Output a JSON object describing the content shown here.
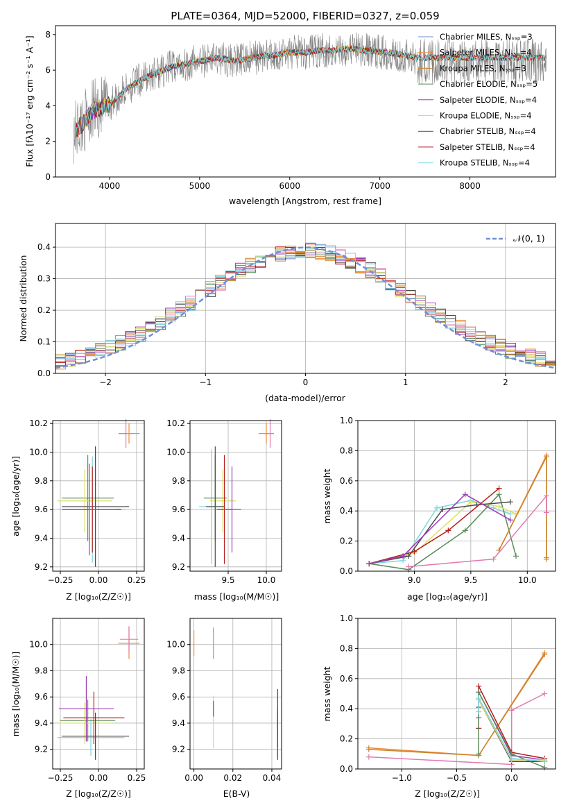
{
  "figure_title": "PLATE=0364, MJD=52000, FIBERID=0327, z=0.059",
  "colors": {
    "spec": "#808080",
    "models": [
      "#6f8fd6",
      "#ef8a3a",
      "#c8842a",
      "#5b8a5b",
      "#9b3fb6",
      "#dede63",
      "#4a4a4a",
      "#b51c1c",
      "#7dd6dd"
    ],
    "pink": "#e07bb2"
  },
  "chart_data": [
    {
      "type": "line",
      "title": "PLATE=0364, MJD=52000, FIBERID=0327, z=0.059",
      "xlabel": "wavelength [Angstrom, rest frame]",
      "ylabel": "Flux [fλ10⁻¹⁷ erg cm⁻² s⁻¹ A⁻¹]",
      "xlim": [
        3400,
        8950
      ],
      "ylim": [
        0,
        8.5
      ],
      "xticks": [
        "4000",
        "5000",
        "6000",
        "7000",
        "8000"
      ],
      "xtick_values": [
        4000,
        5000,
        6000,
        7000,
        8000
      ],
      "yticks": [
        "0",
        "2",
        "4",
        "6",
        "8"
      ],
      "ytick_values": [
        0,
        2,
        4,
        6,
        8
      ],
      "legend_position": "top-right",
      "spectrum_x": [
        3600,
        3700,
        3800,
        3900,
        4000,
        4100,
        4200,
        4300,
        4400,
        4500,
        4600,
        4700,
        4800,
        4900,
        5000,
        5100,
        5200,
        5300,
        5400,
        5500,
        5600,
        5700,
        5800,
        5900,
        6000,
        6100,
        6200,
        6300,
        6400,
        6500,
        6600,
        6700,
        6800,
        6900,
        7000,
        7100,
        7200,
        7300,
        7400
      ],
      "spectrum_y": [
        2.5,
        3.0,
        3.7,
        3.9,
        4.1,
        4.5,
        5.0,
        5.3,
        5.6,
        5.8,
        6.0,
        6.2,
        6.3,
        6.4,
        6.5,
        6.6,
        6.7,
        6.6,
        6.5,
        6.6,
        6.7,
        6.8,
        6.8,
        6.9,
        7.0,
        7.0,
        7.0,
        7.1,
        7.1,
        7.1,
        7.2,
        7.2,
        7.1,
        7.1,
        7.0,
        7.0,
        6.9,
        6.8,
        6.7
      ],
      "series": [
        {
          "name": "Chabrier MILES, Nₛₛₚ=3"
        },
        {
          "name": "Salpeter MILES, Nₛₛₚ=4"
        },
        {
          "name": "Kroupa MILES, Nₛₛₚ=3"
        },
        {
          "name": "Chabrier ELODIE, Nₛₛₚ=5"
        },
        {
          "name": "Salpeter ELODIE, Nₛₛₚ=4"
        },
        {
          "name": "Kroupa ELODIE, Nₛₛₚ=4"
        },
        {
          "name": "Chabrier STELIB, Nₛₛₚ=4"
        },
        {
          "name": "Salpeter STELIB, Nₛₛₚ=4"
        },
        {
          "name": "Kroupa STELIB, Nₛₛₚ=4"
        }
      ]
    },
    {
      "type": "line",
      "xlabel": "(data-model)/error",
      "ylabel": "Normed distribution",
      "xlim": [
        -2.5,
        2.5
      ],
      "ylim": [
        0,
        0.475
      ],
      "xticks": [
        "−2",
        "−1",
        "0",
        "1",
        "2"
      ],
      "xtick_values": [
        -2,
        -1,
        0,
        1,
        2
      ],
      "yticks": [
        "0.0",
        "0.1",
        "0.2",
        "0.3",
        "0.4"
      ],
      "ytick_values": [
        0,
        0.1,
        0.2,
        0.3,
        0.4
      ],
      "legend_position": "top-right",
      "reference_curve": {
        "name": "𝒩(0, 1)",
        "mean": 0,
        "sigma": 1
      },
      "bin_width": 0.1
    },
    {
      "type": "scatter",
      "xlabel": "Z [log₁₀(Z/Z☉)]",
      "ylabel": "age  [log₁₀(age/yr)]",
      "xlim": [
        -0.3,
        0.3
      ],
      "ylim": [
        9.17,
        10.22
      ],
      "xticks": [
        "−0.25",
        "0.00",
        "0.25"
      ],
      "xtick_values": [
        -0.25,
        0,
        0.25
      ],
      "yticks": [
        "9.2",
        "9.4",
        "9.6",
        "9.8",
        "10.0",
        "10.2"
      ],
      "ytick_values": [
        9.2,
        9.4,
        9.6,
        9.8,
        10.0,
        10.2
      ]
    },
    {
      "type": "scatter",
      "xlabel": "mass [log₁₀(M/M☉)]",
      "xlim": [
        9.0,
        10.2
      ],
      "ylim": [
        9.17,
        10.22
      ],
      "xticks": [
        "9.5",
        "10.0"
      ],
      "xtick_values": [
        9.5,
        10.0
      ],
      "yticks": [
        "9.2",
        "9.4",
        "9.6",
        "9.8",
        "10.0",
        "10.2"
      ],
      "ytick_values": [
        9.2,
        9.4,
        9.6,
        9.8,
        10.0,
        10.2
      ]
    },
    {
      "type": "line",
      "xlabel": "age  [log₁₀(age/yr)]",
      "ylabel": "mass weight",
      "xlim": [
        8.5,
        10.25
      ],
      "ylim": [
        0,
        1.0
      ],
      "xticks": [
        "9.0",
        "9.5",
        "10.0"
      ],
      "xtick_values": [
        9.0,
        9.5,
        10.0
      ],
      "yticks": [
        "0.0",
        "0.2",
        "0.4",
        "0.6",
        "0.8",
        "1.0"
      ],
      "ytick_values": [
        0,
        0.2,
        0.4,
        0.6,
        0.8,
        1.0
      ]
    },
    {
      "type": "scatter",
      "xlabel": "Z [log₁₀(Z/Z☉)]",
      "ylabel": "mass [log₁₀(M/M☉)]",
      "xlim": [
        -0.3,
        0.3
      ],
      "ylim": [
        9.05,
        10.2
      ],
      "xticks": [
        "−0.25",
        "0.00",
        "0.25"
      ],
      "xtick_values": [
        -0.25,
        0,
        0.25
      ],
      "yticks": [
        "9.2",
        "9.4",
        "9.6",
        "9.8",
        "10.0"
      ],
      "ytick_values": [
        9.2,
        9.4,
        9.6,
        9.8,
        10.0
      ]
    },
    {
      "type": "scatter",
      "xlabel": "E(B-V)",
      "xlim": [
        -0.002,
        0.045
      ],
      "ylim": [
        9.05,
        10.2
      ],
      "xticks": [
        "0.00",
        "0.02",
        "0.04"
      ],
      "xtick_values": [
        0,
        0.02,
        0.04
      ],
      "yticks": [
        "9.2",
        "9.4",
        "9.6",
        "9.8",
        "10.0"
      ],
      "ytick_values": [
        9.2,
        9.4,
        9.6,
        9.8,
        10.0
      ]
    },
    {
      "type": "line",
      "xlabel": "Z [log₁₀(Z/Z☉)]",
      "ylabel": "mass weight",
      "xlim": [
        -1.4,
        0.4
      ],
      "ylim": [
        0,
        1.0
      ],
      "xticks": [
        "−1.0",
        "−0.5",
        "0.0"
      ],
      "xtick_values": [
        -1.0,
        -0.5,
        0.0
      ],
      "yticks": [
        "0.0",
        "0.2",
        "0.4",
        "0.6",
        "0.8",
        "1.0"
      ],
      "ytick_values": [
        0,
        0.2,
        0.4,
        0.6,
        0.8,
        1.0
      ]
    }
  ],
  "property_points": {
    "age_vs_Z": [
      {
        "c": "#7dd6dd",
        "x": -0.04,
        "xe": 0.22,
        "y": 9.6,
        "ye": 0.37
      },
      {
        "c": "#5b8a5b",
        "x": -0.07,
        "xe": 0.17,
        "y": 9.68,
        "ye": 0.3
      },
      {
        "c": "#dede63",
        "x": -0.09,
        "xe": 0.18,
        "y": 9.66,
        "ye": 0.22
      },
      {
        "c": "#4a4a4a",
        "x": -0.02,
        "xe": 0.22,
        "y": 9.62,
        "ye": 0.42
      },
      {
        "c": "#b51c1c",
        "x": -0.04,
        "xe": 0.19,
        "y": 9.6,
        "ye": 0.3
      },
      {
        "c": "#9b3fb6",
        "x": -0.06,
        "xe": 0.18,
        "y": 9.6,
        "ye": 0.32
      },
      {
        "c": "#ef8a3a",
        "x": 0.2,
        "xe": 0.07,
        "y": 10.13,
        "ye": 0.07
      },
      {
        "c": "#e07bb2",
        "x": 0.18,
        "xe": 0.04,
        "y": 10.13,
        "ye": 0.1
      }
    ],
    "age_vs_mass": [
      {
        "c": "#7dd6dd",
        "x": 9.28,
        "xe": 0.16,
        "y": 9.62,
        "ye": 0.4
      },
      {
        "c": "#5b8a5b",
        "x": 9.33,
        "xe": 0.15,
        "y": 9.68,
        "ye": 0.3
      },
      {
        "c": "#dede63",
        "x": 9.43,
        "xe": 0.17,
        "y": 9.66,
        "ye": 0.22
      },
      {
        "c": "#4a4a4a",
        "x": 9.33,
        "xe": 0.12,
        "y": 9.62,
        "ye": 0.42
      },
      {
        "c": "#b51c1c",
        "x": 9.45,
        "xe": 0.1,
        "y": 9.6,
        "ye": 0.38
      },
      {
        "c": "#9b3fb6",
        "x": 9.55,
        "xe": 0.12,
        "y": 9.6,
        "ye": 0.3
      },
      {
        "c": "#ef8a3a",
        "x": 10.0,
        "xe": 0.1,
        "y": 10.13,
        "ye": 0.07
      },
      {
        "c": "#e07bb2",
        "x": 10.05,
        "xe": 0.05,
        "y": 10.13,
        "ye": 0.1
      }
    ],
    "mass_vs_Z": [
      {
        "c": "#7dd6dd",
        "x": -0.05,
        "xe": 0.22,
        "y": 9.29,
        "ye": 0.14
      },
      {
        "c": "#5b8a5b",
        "x": -0.07,
        "xe": 0.18,
        "y": 9.42,
        "ye": 0.16
      },
      {
        "c": "#dede63",
        "x": -0.09,
        "xe": 0.18,
        "y": 9.4,
        "ye": 0.16
      },
      {
        "c": "#4a4a4a",
        "x": -0.02,
        "xe": 0.22,
        "y": 9.3,
        "ye": 0.18
      },
      {
        "c": "#b51c1c",
        "x": -0.03,
        "xe": 0.2,
        "y": 9.44,
        "ye": 0.2
      },
      {
        "c": "#9b3fb6",
        "x": -0.08,
        "xe": 0.18,
        "y": 9.51,
        "ye": 0.25
      },
      {
        "c": "#ef8a3a",
        "x": 0.2,
        "xe": 0.07,
        "y": 10.01,
        "ye": 0.12
      },
      {
        "c": "#e07bb2",
        "x": 0.2,
        "xe": 0.06,
        "y": 10.04,
        "ye": 0.1
      }
    ],
    "mass_vs_ebv": [
      {
        "c": "#7dd6dd",
        "x": 0.043,
        "y": 9.29,
        "ye": 0.14
      },
      {
        "c": "#5b8a5b",
        "x": 0.043,
        "y": 9.42,
        "ye": 0.1
      },
      {
        "c": "#dede63",
        "x": 0.01,
        "y": 9.41,
        "ye": 0.2
      },
      {
        "c": "#4a4a4a",
        "x": 0.043,
        "y": 9.3,
        "ye": 0.18
      },
      {
        "c": "#b51c1c",
        "x": 0.043,
        "y": 9.44,
        "ye": 0.22
      },
      {
        "c": "#9b3fb6",
        "x": 0.01,
        "y": 9.51,
        "ye": 0.06
      },
      {
        "c": "#ef8a3a",
        "x": 0.0,
        "y": 10.01,
        "ye": 0.1
      },
      {
        "c": "#e07bb2",
        "x": 0.01,
        "y": 10.01,
        "ye": 0.12
      }
    ]
  },
  "weight_lines": {
    "age": [
      {
        "c": "#7dd6dd",
        "pts": [
          [
            8.6,
            0.05
          ],
          [
            8.9,
            0.07
          ],
          [
            9.2,
            0.42
          ],
          [
            9.5,
            0.47
          ],
          [
            9.7,
            0.42
          ],
          [
            9.85,
            0.38
          ]
        ]
      },
      {
        "c": "#5b8a5b",
        "pts": [
          [
            8.6,
            0.05
          ],
          [
            8.95,
            0.01
          ],
          [
            9.45,
            0.27
          ],
          [
            9.75,
            0.51
          ],
          [
            9.9,
            0.1
          ]
        ]
      },
      {
        "c": "#dede63",
        "pts": [
          [
            8.6,
            0.05
          ],
          [
            9.0,
            0.12
          ],
          [
            9.5,
            0.46
          ],
          [
            9.75,
            0.43
          ],
          [
            9.9,
            0.38
          ]
        ]
      },
      {
        "c": "#4a4a4a",
        "pts": [
          [
            8.6,
            0.05
          ],
          [
            8.95,
            0.1
          ],
          [
            9.25,
            0.41
          ],
          [
            9.55,
            0.44
          ],
          [
            9.85,
            0.46
          ]
        ]
      },
      {
        "c": "#b51c1c",
        "pts": [
          [
            8.6,
            0.05
          ],
          [
            9.0,
            0.13
          ],
          [
            9.3,
            0.27
          ],
          [
            9.75,
            0.55
          ]
        ]
      },
      {
        "c": "#9b3fb6",
        "pts": [
          [
            8.6,
            0.05
          ],
          [
            8.9,
            0.1
          ],
          [
            9.45,
            0.51
          ],
          [
            9.85,
            0.34
          ]
        ]
      },
      {
        "c": "#ef8a3a",
        "pts": [
          [
            9.75,
            0.14
          ],
          [
            10.17,
            0.77
          ],
          [
            10.17,
            0.09
          ]
        ]
      },
      {
        "c": "#c8842a",
        "pts": [
          [
            9.75,
            0.14
          ],
          [
            10.17,
            0.76
          ],
          [
            10.17,
            0.08
          ]
        ]
      },
      {
        "c": "#e07bb2",
        "pts": [
          [
            8.95,
            0.03
          ],
          [
            9.7,
            0.08
          ],
          [
            10.17,
            0.5
          ],
          [
            10.17,
            0.39
          ]
        ]
      }
    ],
    "Z": [
      {
        "c": "#ef8a3a",
        "pts": [
          [
            -1.3,
            0.14
          ],
          [
            -0.3,
            0.09
          ],
          [
            0.3,
            0.77
          ]
        ]
      },
      {
        "c": "#c8842a",
        "pts": [
          [
            -1.3,
            0.13
          ],
          [
            -0.3,
            0.09
          ],
          [
            0.3,
            0.76
          ]
        ]
      },
      {
        "c": "#e07bb2",
        "pts": [
          [
            -1.3,
            0.08
          ],
          [
            0.0,
            0.03
          ],
          [
            0.0,
            0.39
          ],
          [
            0.3,
            0.5
          ]
        ]
      },
      {
        "c": "#b51c1c",
        "pts": [
          [
            -0.3,
            0.27
          ],
          [
            -0.3,
            0.55
          ],
          [
            0.0,
            0.11
          ],
          [
            0.3,
            0.07
          ]
        ]
      },
      {
        "c": "#9b3fb6",
        "pts": [
          [
            -0.3,
            0.34
          ],
          [
            -0.3,
            0.51
          ],
          [
            0.0,
            0.09
          ],
          [
            0.3,
            0.06
          ]
        ]
      },
      {
        "c": "#5b8a5b",
        "pts": [
          [
            -0.3,
            0.1
          ],
          [
            -0.3,
            0.51
          ],
          [
            0.0,
            0.1
          ],
          [
            0.3,
            0.01
          ]
        ]
      },
      {
        "c": "#4a4a4a",
        "pts": [
          [
            -0.3,
            0.41
          ],
          [
            -0.3,
            0.46
          ],
          [
            0.0,
            0.05
          ],
          [
            0.3,
            0.05
          ]
        ]
      },
      {
        "c": "#dede63",
        "pts": [
          [
            -0.3,
            0.38
          ],
          [
            -0.3,
            0.46
          ],
          [
            0.0,
            0.06
          ],
          [
            0.3,
            0.06
          ]
        ]
      },
      {
        "c": "#7dd6dd",
        "pts": [
          [
            -0.3,
            0.38
          ],
          [
            -0.3,
            0.47
          ],
          [
            0.0,
            0.07
          ],
          [
            0.3,
            0.05
          ]
        ]
      }
    ]
  }
}
